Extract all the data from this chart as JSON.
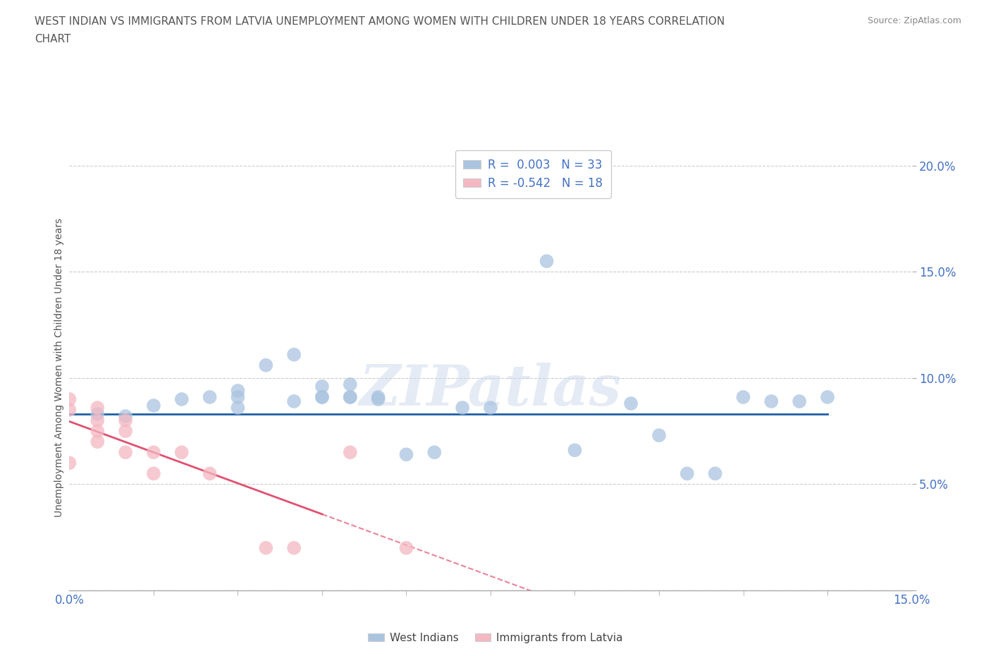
{
  "title_line1": "WEST INDIAN VS IMMIGRANTS FROM LATVIA UNEMPLOYMENT AMONG WOMEN WITH CHILDREN UNDER 18 YEARS CORRELATION",
  "title_line2": "CHART",
  "source": "Source: ZipAtlas.com",
  "ylabel": "Unemployment Among Women with Children Under 18 years",
  "xlim": [
    0,
    0.15
  ],
  "ylim": [
    0,
    0.21
  ],
  "xtick_positions": [
    0.0,
    0.15
  ],
  "xtick_labels": [
    "0.0%",
    "15.0%"
  ],
  "yticks": [
    0.0,
    0.05,
    0.1,
    0.15,
    0.2
  ],
  "ytick_labels": [
    "",
    "5.0%",
    "10.0%",
    "15.0%",
    "20.0%"
  ],
  "blue_R": 0.003,
  "blue_N": 33,
  "pink_R": -0.542,
  "pink_N": 18,
  "blue_hline_y": 0.083,
  "blue_hline_x_end": 0.135,
  "blue_points_x": [
    0.005,
    0.01,
    0.015,
    0.02,
    0.025,
    0.03,
    0.03,
    0.03,
    0.035,
    0.04,
    0.04,
    0.045,
    0.045,
    0.045,
    0.05,
    0.05,
    0.05,
    0.055,
    0.055,
    0.06,
    0.065,
    0.07,
    0.075,
    0.085,
    0.09,
    0.1,
    0.105,
    0.11,
    0.115,
    0.12,
    0.125,
    0.13,
    0.135
  ],
  "blue_points_y": [
    0.083,
    0.082,
    0.087,
    0.09,
    0.091,
    0.091,
    0.086,
    0.094,
    0.106,
    0.111,
    0.089,
    0.091,
    0.091,
    0.096,
    0.097,
    0.091,
    0.091,
    0.09,
    0.091,
    0.064,
    0.065,
    0.086,
    0.086,
    0.155,
    0.066,
    0.088,
    0.073,
    0.055,
    0.055,
    0.091,
    0.089,
    0.089,
    0.091
  ],
  "pink_points_x": [
    0.0,
    0.0,
    0.0,
    0.005,
    0.005,
    0.005,
    0.005,
    0.01,
    0.01,
    0.01,
    0.015,
    0.015,
    0.02,
    0.025,
    0.035,
    0.04,
    0.05,
    0.06
  ],
  "pink_points_y": [
    0.09,
    0.085,
    0.06,
    0.086,
    0.08,
    0.075,
    0.07,
    0.08,
    0.075,
    0.065,
    0.065,
    0.055,
    0.065,
    0.055,
    0.02,
    0.02,
    0.065,
    0.02
  ],
  "blue_color": "#aac4e0",
  "pink_color": "#f4b8c2",
  "blue_line_color": "#1f5fa6",
  "pink_line_color": "#e05070",
  "pink_line_solid_end": 0.045,
  "pink_line_dash_end": 0.038,
  "watermark_text": "ZIPatlas",
  "background_color": "#ffffff",
  "grid_color": "#cccccc",
  "title_color": "#555555",
  "axis_tick_color": "#4472c4",
  "legend_label1": "West Indians",
  "legend_label2": "Immigrants from Latvia",
  "legend_r1": "R =  0.003",
  "legend_n1": "N = 33",
  "legend_r2": "R = -0.542",
  "legend_n2": "N = 18"
}
